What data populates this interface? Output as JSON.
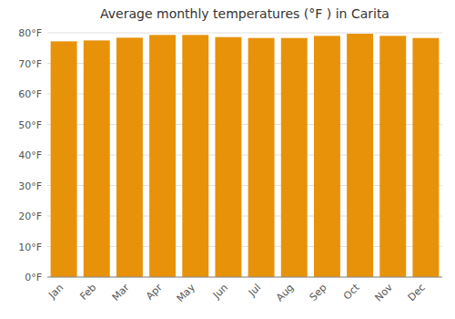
{
  "chart_data": {
    "type": "bar",
    "title": "Average monthly temperatures (°F ) in Carita",
    "categories": [
      "Jan",
      "Feb",
      "Mar",
      "Apr",
      "May",
      "Jun",
      "Jul",
      "Aug",
      "Sep",
      "Oct",
      "Nov",
      "Dec"
    ],
    "values": [
      77.2,
      77.5,
      78.4,
      79.3,
      79.3,
      78.6,
      78.3,
      78.3,
      79.0,
      79.7,
      79.0,
      78.3
    ],
    "color": "#E8920A",
    "ylim": [
      0,
      80
    ],
    "yticks": [
      {
        "value": 0,
        "label": "0°F"
      },
      {
        "value": 10,
        "label": "10°F"
      },
      {
        "value": 20,
        "label": "20°F"
      },
      {
        "value": 30,
        "label": "30°F"
      },
      {
        "value": 40,
        "label": "40°F"
      },
      {
        "value": 50,
        "label": "50°F"
      },
      {
        "value": 60,
        "label": "60°F"
      },
      {
        "value": 70,
        "label": "70°F"
      },
      {
        "value": 80,
        "label": "80°F"
      }
    ],
    "grid": true
  }
}
